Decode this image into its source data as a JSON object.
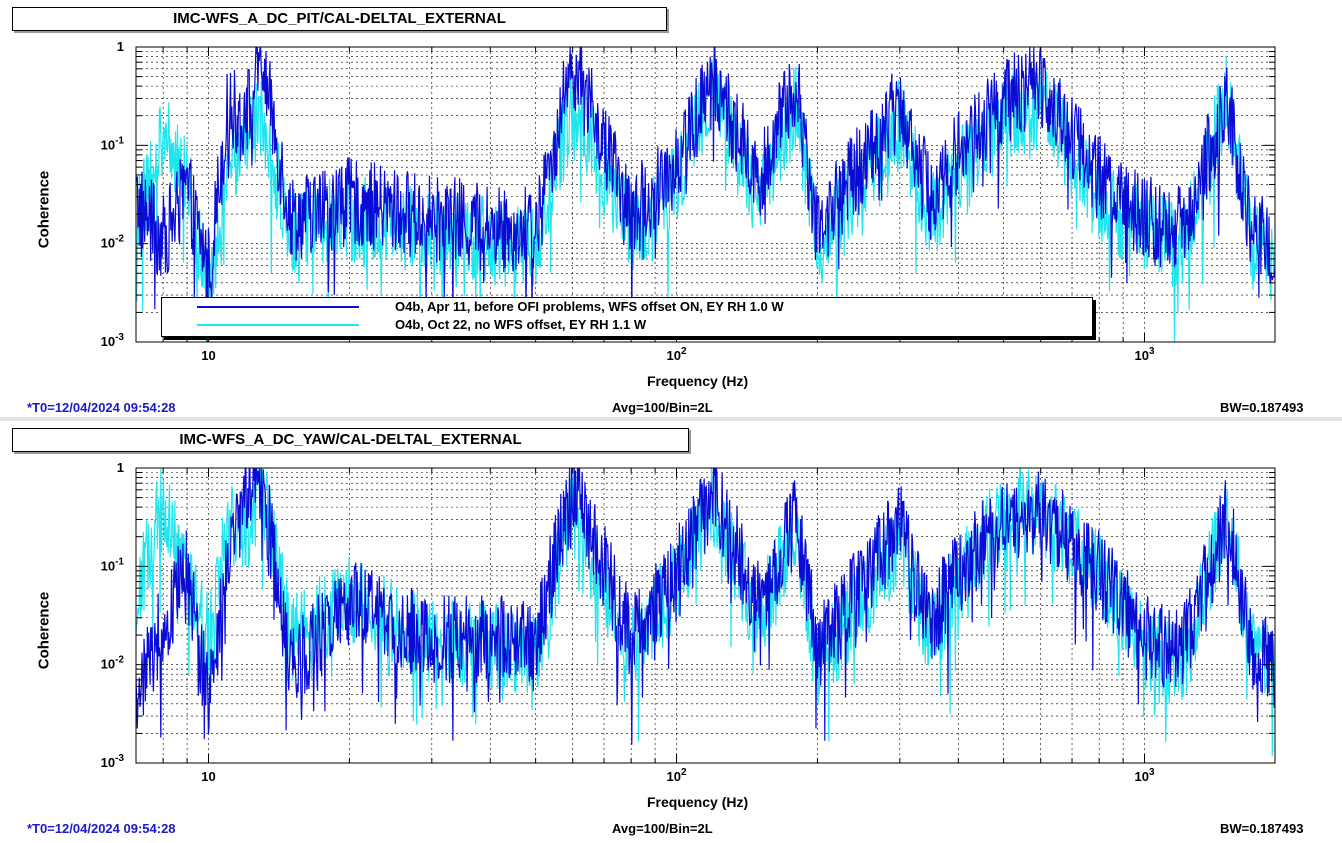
{
  "panels": [
    {
      "title": "IMC-WFS_A_DC_PIT/CAL-DELTAL_EXTERNAL",
      "ylabel": "Coherence",
      "xlabel": "Frequency (Hz)",
      "footer_left": "*T0=12/04/2024 09:54:28",
      "footer_center": "Avg=100/Bin=2L",
      "footer_right": "BW=0.187493"
    },
    {
      "title": "IMC-WFS_A_DC_YAW/CAL-DELTAL_EXTERNAL",
      "ylabel": "Coherence",
      "xlabel": "Frequency (Hz)",
      "footer_left": "*T0=12/04/2024 09:54:28",
      "footer_center": "Avg=100/Bin=2L",
      "footer_right": "BW=0.187493"
    }
  ],
  "legend": [
    {
      "label": "O4b, Apr 11, before OFI problems, WFS offset ON, EY RH 1.0 W",
      "color": "#0b0bd6"
    },
    {
      "label": "O4b, Oct 22, no WFS offset, EY RH 1.1 W",
      "color": "#1fe6ee"
    }
  ],
  "chart_data": [
    {
      "type": "line",
      "title": "IMC-WFS_A_DC_PIT/CAL-DELTAL_EXTERNAL",
      "xlabel": "Frequency (Hz)",
      "ylabel": "Coherence",
      "xscale": "log",
      "yscale": "log",
      "xlim": [
        7,
        1900
      ],
      "ylim": [
        0.001,
        1
      ],
      "x_tick_labels": [
        "10",
        "10^2",
        "10^3"
      ],
      "y_tick_labels": [
        "10^-3",
        "10^-2",
        "10^-1",
        "1"
      ],
      "grid": true,
      "legend_position": "bottom-left",
      "x": [
        7,
        8,
        9,
        10,
        11,
        12,
        13,
        15,
        20,
        30,
        50,
        60,
        80,
        100,
        120,
        150,
        180,
        200,
        300,
        350,
        400,
        500,
        600,
        800,
        1000,
        1200,
        1500,
        1700,
        1900
      ],
      "series": [
        {
          "name": "O4b, Apr 11, before OFI problems, WFS offset ON, EY RH 1.0 W",
          "color": "#0b0bd6",
          "values": [
            0.03,
            0.012,
            0.04,
            0.006,
            0.25,
            0.22,
            0.8,
            0.02,
            0.03,
            0.02,
            0.015,
            0.8,
            0.02,
            0.08,
            0.5,
            0.05,
            0.5,
            0.015,
            0.3,
            0.03,
            0.1,
            0.3,
            0.5,
            0.05,
            0.02,
            0.015,
            0.3,
            0.015,
            0.01
          ]
        },
        {
          "name": "O4b, Oct 22, no WFS offset, EY RH 1.1 W",
          "color": "#1fe6ee",
          "values": [
            0.015,
            0.15,
            0.05,
            0.003,
            0.05,
            0.15,
            0.2,
            0.015,
            0.02,
            0.015,
            0.01,
            0.3,
            0.015,
            0.05,
            0.4,
            0.03,
            0.3,
            0.01,
            0.2,
            0.02,
            0.06,
            0.2,
            0.3,
            0.03,
            0.015,
            0.01,
            0.35,
            0.01,
            0.008
          ]
        }
      ]
    },
    {
      "type": "line",
      "title": "IMC-WFS_A_DC_YAW/CAL-DELTAL_EXTERNAL",
      "xlabel": "Frequency (Hz)",
      "ylabel": "Coherence",
      "xscale": "log",
      "yscale": "log",
      "xlim": [
        7,
        1900
      ],
      "ylim": [
        0.001,
        1
      ],
      "x_tick_labels": [
        "10",
        "10^2",
        "10^3"
      ],
      "y_tick_labels": [
        "10^-3",
        "10^-2",
        "10^-1",
        "1"
      ],
      "grid": true,
      "x": [
        7,
        8,
        9,
        10,
        11,
        12,
        13,
        15,
        20,
        30,
        50,
        60,
        80,
        100,
        120,
        150,
        180,
        200,
        300,
        350,
        400,
        500,
        600,
        800,
        1000,
        1200,
        1500,
        1700,
        1900
      ],
      "series": [
        {
          "name": "O4b, Apr 11, before OFI problems, WFS offset ON, EY RH 1.0 W",
          "color": "#0b0bd6",
          "values": [
            0.005,
            0.03,
            0.1,
            0.005,
            0.1,
            0.6,
            0.85,
            0.01,
            0.05,
            0.02,
            0.02,
            0.8,
            0.02,
            0.1,
            0.6,
            0.05,
            0.4,
            0.015,
            0.3,
            0.03,
            0.1,
            0.35,
            0.4,
            0.1,
            0.02,
            0.015,
            0.35,
            0.015,
            0.01
          ]
        },
        {
          "name": "O4b, Oct 22, no WFS offset, EY RH 1.1 W",
          "color": "#1fe6ee",
          "values": [
            0.05,
            0.5,
            0.1,
            0.02,
            0.35,
            0.25,
            0.7,
            0.02,
            0.05,
            0.02,
            0.015,
            0.4,
            0.015,
            0.08,
            0.5,
            0.03,
            0.3,
            0.01,
            0.2,
            0.02,
            0.08,
            0.4,
            0.4,
            0.1,
            0.015,
            0.01,
            0.4,
            0.015,
            0.01
          ]
        }
      ]
    }
  ]
}
